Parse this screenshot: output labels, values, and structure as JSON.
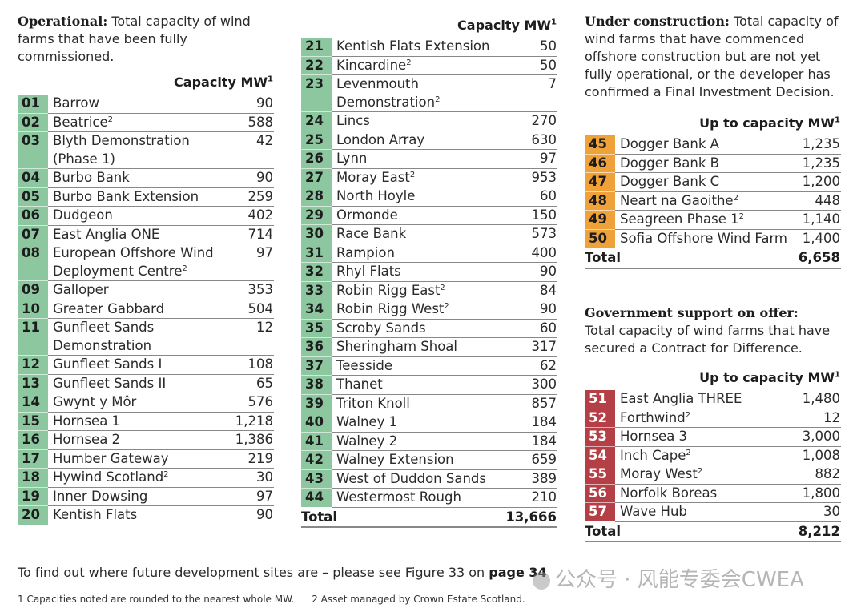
{
  "operational": {
    "heading": "Operational:",
    "desc": "Total capacity of wind farms that have been fully commissioned.",
    "col_header": "Capacity MW",
    "col_header_sup": "1",
    "rows": [
      {
        "num": "01",
        "name": "Barrow",
        "sup": "",
        "cap": "90"
      },
      {
        "num": "02",
        "name": "Beatrice",
        "sup": "2",
        "cap": "588"
      },
      {
        "num": "03",
        "name": "Blyth Demonstration (Phase 1)",
        "sup": "",
        "cap": "42"
      },
      {
        "num": "04",
        "name": "Burbo Bank",
        "sup": "",
        "cap": "90"
      },
      {
        "num": "05",
        "name": "Burbo Bank Extension",
        "sup": "",
        "cap": "259"
      },
      {
        "num": "06",
        "name": "Dudgeon",
        "sup": "",
        "cap": "402"
      },
      {
        "num": "07",
        "name": "East Anglia ONE",
        "sup": "",
        "cap": "714"
      },
      {
        "num": "08",
        "name": "European Offshore Wind Deployment Centre",
        "sup": "2",
        "cap": "97"
      },
      {
        "num": "09",
        "name": "Galloper",
        "sup": "",
        "cap": "353"
      },
      {
        "num": "10",
        "name": "Greater Gabbard",
        "sup": "",
        "cap": "504"
      },
      {
        "num": "11",
        "name": "Gunfleet Sands Demonstration",
        "sup": "",
        "cap": "12"
      },
      {
        "num": "12",
        "name": "Gunfleet Sands I",
        "sup": "",
        "cap": "108"
      },
      {
        "num": "13",
        "name": "Gunfleet Sands II",
        "sup": "",
        "cap": "65"
      },
      {
        "num": "14",
        "name": "Gwynt y Môr",
        "sup": "",
        "cap": "576"
      },
      {
        "num": "15",
        "name": "Hornsea 1",
        "sup": "",
        "cap": "1,218"
      },
      {
        "num": "16",
        "name": "Hornsea 2",
        "sup": "",
        "cap": "1,386"
      },
      {
        "num": "17",
        "name": "Humber Gateway",
        "sup": "",
        "cap": "219"
      },
      {
        "num": "18",
        "name": "Hywind Scotland",
        "sup": "2",
        "cap": "30"
      },
      {
        "num": "19",
        "name": "Inner Dowsing",
        "sup": "",
        "cap": "97"
      },
      {
        "num": "20",
        "name": "Kentish Flats",
        "sup": "",
        "cap": "90"
      }
    ]
  },
  "operational_cont": {
    "col_header": "Capacity MW",
    "col_header_sup": "1",
    "rows": [
      {
        "num": "21",
        "name": "Kentish Flats Extension",
        "sup": "",
        "cap": "50"
      },
      {
        "num": "22",
        "name": "Kincardine",
        "sup": "2",
        "cap": "50"
      },
      {
        "num": "23",
        "name": "Levenmouth Demonstration",
        "sup": "2",
        "cap": "7"
      },
      {
        "num": "24",
        "name": "Lincs",
        "sup": "",
        "cap": "270"
      },
      {
        "num": "25",
        "name": "London Array",
        "sup": "",
        "cap": "630"
      },
      {
        "num": "26",
        "name": "Lynn",
        "sup": "",
        "cap": "97"
      },
      {
        "num": "27",
        "name": "Moray East",
        "sup": "2",
        "cap": "953"
      },
      {
        "num": "28",
        "name": "North Hoyle",
        "sup": "",
        "cap": "60"
      },
      {
        "num": "29",
        "name": "Ormonde",
        "sup": "",
        "cap": "150"
      },
      {
        "num": "30",
        "name": "Race Bank",
        "sup": "",
        "cap": "573"
      },
      {
        "num": "31",
        "name": "Rampion",
        "sup": "",
        "cap": "400"
      },
      {
        "num": "32",
        "name": "Rhyl Flats",
        "sup": "",
        "cap": "90"
      },
      {
        "num": "33",
        "name": "Robin Rigg East",
        "sup": "2",
        "cap": "84"
      },
      {
        "num": "34",
        "name": "Robin Rigg West",
        "sup": "2",
        "cap": "90"
      },
      {
        "num": "35",
        "name": "Scroby Sands",
        "sup": "",
        "cap": "60"
      },
      {
        "num": "36",
        "name": "Sheringham Shoal",
        "sup": "",
        "cap": "317"
      },
      {
        "num": "37",
        "name": "Teesside",
        "sup": "",
        "cap": "62"
      },
      {
        "num": "38",
        "name": "Thanet",
        "sup": "",
        "cap": "300"
      },
      {
        "num": "39",
        "name": "Triton Knoll",
        "sup": "",
        "cap": "857"
      },
      {
        "num": "40",
        "name": "Walney 1",
        "sup": "",
        "cap": "184"
      },
      {
        "num": "41",
        "name": "Walney 2",
        "sup": "",
        "cap": "184"
      },
      {
        "num": "42",
        "name": "Walney Extension",
        "sup": "",
        "cap": "659"
      },
      {
        "num": "43",
        "name": "West of Duddon Sands",
        "sup": "",
        "cap": "389"
      },
      {
        "num": "44",
        "name": "Westermost Rough",
        "sup": "",
        "cap": "210"
      }
    ],
    "total_label": "Total",
    "total_value": "13,666"
  },
  "construction": {
    "heading": "Under construction:",
    "desc": "Total capacity of wind farms that have commenced offshore construction but are not yet fully operational, or the developer has confirmed a Final Investment Decision.",
    "col_header": "Up to capacity MW",
    "col_header_sup": "1",
    "rows": [
      {
        "num": "45",
        "name": "Dogger Bank A",
        "sup": "",
        "cap": "1,235"
      },
      {
        "num": "46",
        "name": "Dogger Bank B",
        "sup": "",
        "cap": "1,235"
      },
      {
        "num": "47",
        "name": "Dogger Bank C",
        "sup": "",
        "cap": "1,200"
      },
      {
        "num": "48",
        "name": "Neart na Gaoithe",
        "sup": "2",
        "cap": "448"
      },
      {
        "num": "49",
        "name": "Seagreen Phase 1",
        "sup": "2",
        "cap": "1,140"
      },
      {
        "num": "50",
        "name": "Sofia Offshore Wind Farm",
        "sup": "",
        "cap": "1,400"
      }
    ],
    "total_label": "Total",
    "total_value": "6,658"
  },
  "government": {
    "heading": "Government support on offer:",
    "desc": "Total capacity of wind farms that have secured a Contract for Difference.",
    "col_header": "Up to capacity MW",
    "col_header_sup": "1",
    "rows": [
      {
        "num": "51",
        "name": "East Anglia THREE",
        "sup": "",
        "cap": "1,480"
      },
      {
        "num": "52",
        "name": "Forthwind",
        "sup": "2",
        "cap": "12"
      },
      {
        "num": "53",
        "name": "Hornsea 3",
        "sup": "",
        "cap": "3,000"
      },
      {
        "num": "54",
        "name": "Inch Cape",
        "sup": "2",
        "cap": "1,008"
      },
      {
        "num": "55",
        "name": "Moray West",
        "sup": "2",
        "cap": "882"
      },
      {
        "num": "56",
        "name": "Norfolk Boreas",
        "sup": "",
        "cap": "1,800"
      },
      {
        "num": "57",
        "name": "Wave Hub",
        "sup": "",
        "cap": "30"
      }
    ],
    "total_label": "Total",
    "total_value": "8,212"
  },
  "footer": {
    "text": "To find out where future development sites are – please see Figure 33 on",
    "link": "page 34",
    "note1": "1  Capacities noted are rounded to the nearest whole MW.",
    "note2": "2  Asset managed by Crown Estate Scotland."
  },
  "watermark": "公众号 · 风能专委会CWEA",
  "colors": {
    "operational": "#8dc7a0",
    "construction": "#f0a23a",
    "government": "#b43f46"
  }
}
